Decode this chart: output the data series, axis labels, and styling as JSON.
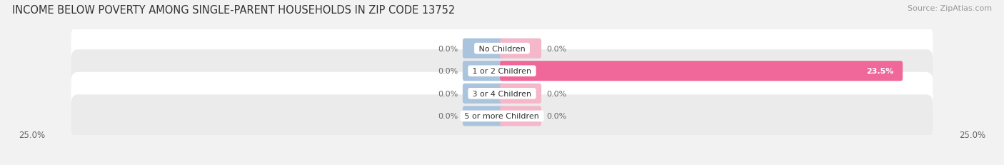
{
  "title": "INCOME BELOW POVERTY AMONG SINGLE-PARENT HOUSEHOLDS IN ZIP CODE 13752",
  "source": "Source: ZipAtlas.com",
  "categories": [
    "No Children",
    "1 or 2 Children",
    "3 or 4 Children",
    "5 or more Children"
  ],
  "single_father": [
    0.0,
    0.0,
    0.0,
    0.0
  ],
  "single_mother": [
    0.0,
    23.5,
    0.0,
    0.0
  ],
  "max_val": 25.0,
  "father_color": "#aac4de",
  "mother_color_stub": "#f5b8cb",
  "mother_color_bar": "#f0689a",
  "bg_color": "#f2f2f2",
  "row_color_odd": "#ffffff",
  "row_color_even": "#ebebeb",
  "title_fontsize": 10.5,
  "source_fontsize": 8,
  "label_fontsize": 8,
  "value_fontsize": 8,
  "axis_label_fontsize": 8.5,
  "legend_fontsize": 8.5,
  "bar_height": 0.65
}
